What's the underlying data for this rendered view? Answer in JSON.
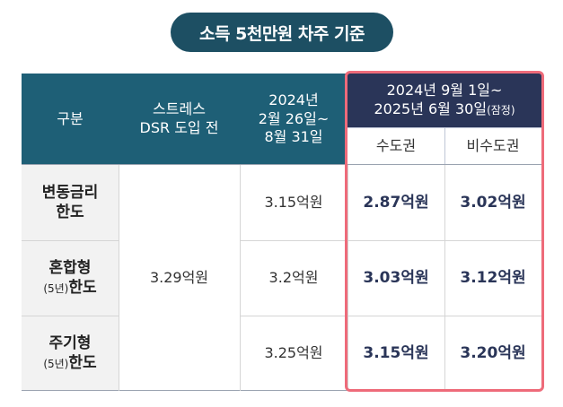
{
  "title": "소득 5천만원 차주 기준",
  "headers": {
    "category": "구분",
    "pre_stress": "스트레스\nDSR 도입 전",
    "period1": "2024년\n2월 26일~\n8월 31일",
    "period2": "2024년 9월 1일~\n2025년 6월 30일",
    "period2_note": "(잠정)",
    "sub_capital": "수도권",
    "sub_noncapital": "비수도권"
  },
  "rows": [
    {
      "label_line1": "변동금리",
      "label_line2_small": "",
      "label_line2": "한도",
      "period1": "3.15억원",
      "capital": "2.87억원",
      "noncapital": "3.02억원"
    },
    {
      "label_line1": "혼합형",
      "label_line2_small": "(5년)",
      "label_line2": "한도",
      "period1": "3.2억원",
      "capital": "3.03억원",
      "noncapital": "3.12억원"
    },
    {
      "label_line1": "주기형",
      "label_line2_small": "(5년)",
      "label_line2": "한도",
      "period1": "3.25억원",
      "capital": "3.15억원",
      "noncapital": "3.20억원"
    }
  ],
  "pre_stress_value": "3.29억원",
  "colors": {
    "title_bg": "#1d4f63",
    "header_teal": "#1e5f76",
    "header_navy": "#2a3558",
    "highlight_border": "#ee6b7a",
    "row_label_bg": "#f2f2f2"
  }
}
